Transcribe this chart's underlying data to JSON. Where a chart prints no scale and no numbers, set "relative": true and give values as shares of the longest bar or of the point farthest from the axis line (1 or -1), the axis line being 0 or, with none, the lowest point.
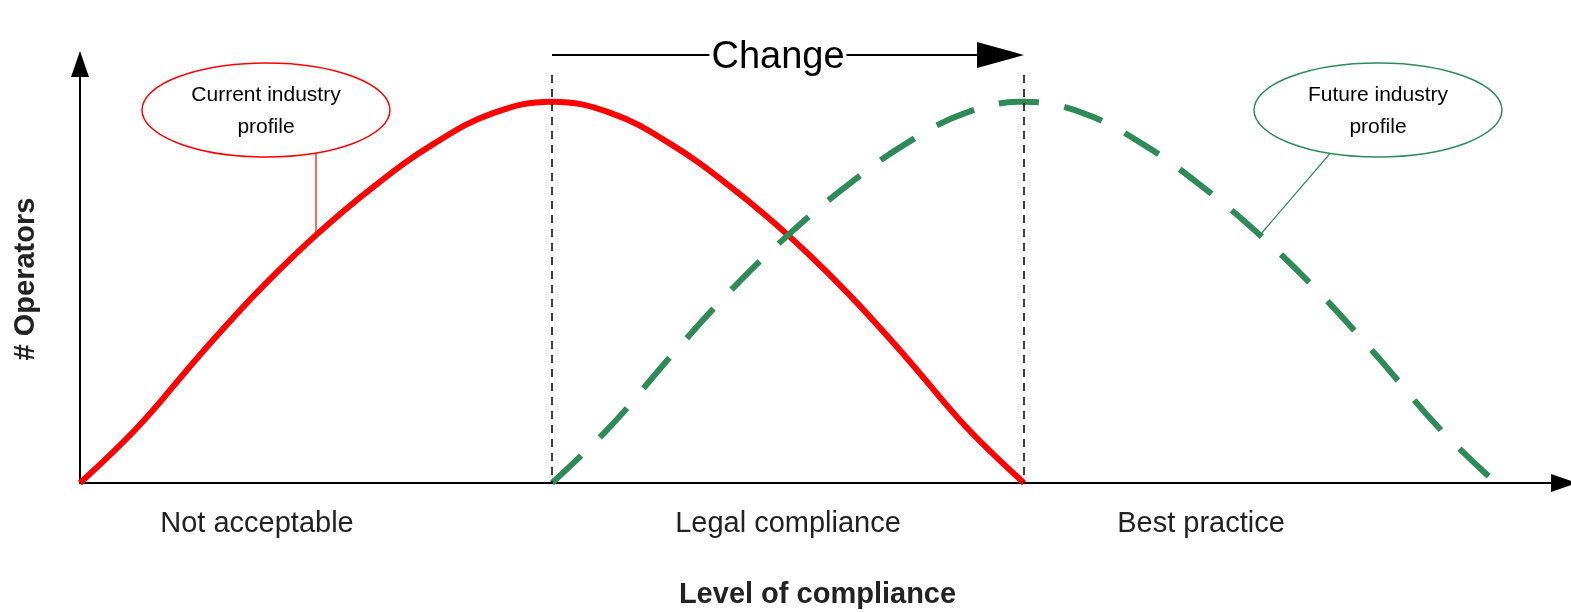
{
  "chart_data": {
    "type": "line",
    "relative": true,
    "xlabel": "Level of compliance",
    "ylabel": "# Operators",
    "annotations": [
      "Change"
    ],
    "categories": [
      null,
      null,
      null,
      "Not acceptable",
      null,
      null,
      null,
      null,
      null,
      null,
      null,
      null,
      "Legal compliance",
      null,
      null,
      null,
      null,
      null,
      null,
      "Best practice",
      null,
      null,
      null,
      null,
      null,
      null
    ],
    "marker": "none",
    "series": [
      {
        "name": "Current industry profile",
        "color": "#ff0000",
        "line_style": "solid",
        "values": [
          0,
          0.15,
          0.33,
          0.5,
          0.65,
          0.78,
          0.89,
          0.97,
          1,
          0.97,
          0.89,
          0.78,
          0.65,
          0.5,
          0.33,
          0.15,
          0,
          null,
          null,
          null,
          null,
          null,
          null,
          null,
          null,
          null
        ]
      },
      {
        "name": "Future industry profile",
        "color": "#2e8b57",
        "line_style": "dashed",
        "values": [
          null,
          null,
          null,
          null,
          null,
          null,
          null,
          null,
          0,
          0.15,
          0.33,
          0.5,
          0.65,
          0.78,
          0.89,
          0.97,
          1,
          0.97,
          0.89,
          0.78,
          0.65,
          0.5,
          0.33,
          0.15,
          0,
          null
        ]
      }
    ]
  }
}
